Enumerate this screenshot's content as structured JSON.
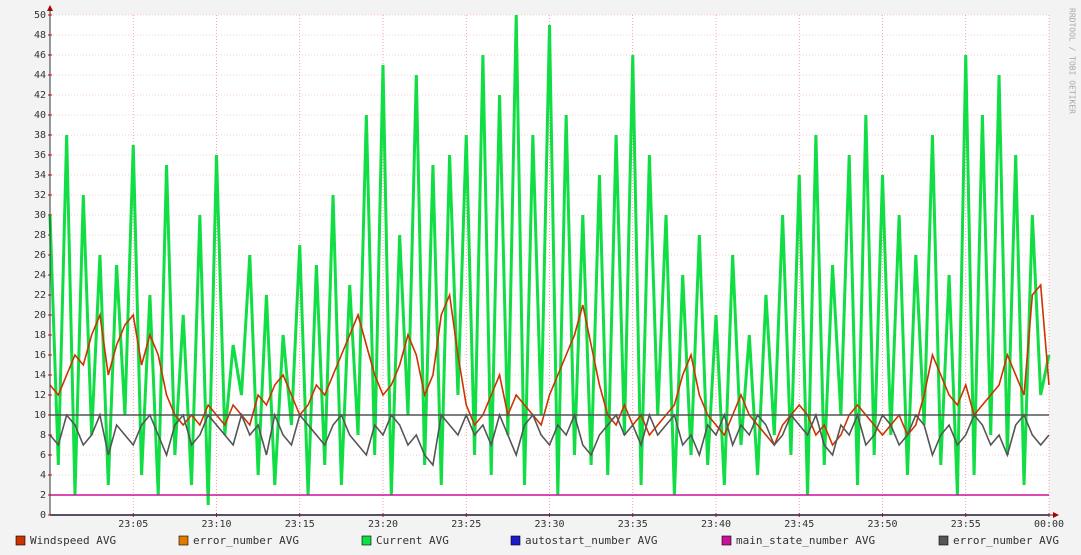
{
  "chart_data": {
    "type": "line",
    "watermark": "RRDTOOL / TOBI OETIKER",
    "xlim": [
      0,
      60
    ],
    "xticks": [
      {
        "value": 5,
        "label": "23:05"
      },
      {
        "value": 10,
        "label": "23:10"
      },
      {
        "value": 15,
        "label": "23:15"
      },
      {
        "value": 20,
        "label": "23:20"
      },
      {
        "value": 25,
        "label": "23:25"
      },
      {
        "value": 30,
        "label": "23:30"
      },
      {
        "value": 35,
        "label": "23:35"
      },
      {
        "value": 40,
        "label": "23:40"
      },
      {
        "value": 45,
        "label": "23:45"
      },
      {
        "value": 50,
        "label": "23:50"
      },
      {
        "value": 55,
        "label": "23:55"
      },
      {
        "value": 60,
        "label": "00:00"
      }
    ],
    "ylim": [
      0,
      50
    ],
    "yticks": [
      0,
      2,
      4,
      6,
      8,
      10,
      12,
      14,
      16,
      18,
      20,
      22,
      24,
      26,
      28,
      30,
      32,
      34,
      36,
      38,
      40,
      42,
      44,
      46,
      48,
      50
    ],
    "grid": true,
    "hrules": [
      {
        "value": 10,
        "color": "#555555"
      }
    ],
    "x": [
      0,
      0.5,
      1,
      1.5,
      2,
      2.5,
      3,
      3.5,
      4,
      4.5,
      5,
      5.5,
      6,
      6.5,
      7,
      7.5,
      8,
      8.5,
      9,
      9.5,
      10,
      10.5,
      11,
      11.5,
      12,
      12.5,
      13,
      13.5,
      14,
      14.5,
      15,
      15.5,
      16,
      16.5,
      17,
      17.5,
      18,
      18.5,
      19,
      19.5,
      20,
      20.5,
      21,
      21.5,
      22,
      22.5,
      23,
      23.5,
      24,
      24.5,
      25,
      25.5,
      26,
      26.5,
      27,
      27.5,
      28,
      28.5,
      29,
      29.5,
      30,
      30.5,
      31,
      31.5,
      32,
      32.5,
      33,
      33.5,
      34,
      34.5,
      35,
      35.5,
      36,
      36.5,
      37,
      37.5,
      38,
      38.5,
      39,
      39.5,
      40,
      40.5,
      41,
      41.5,
      42,
      42.5,
      43,
      43.5,
      44,
      44.5,
      45,
      45.5,
      46,
      46.5,
      47,
      47.5,
      48,
      48.5,
      49,
      49.5,
      50,
      50.5,
      51,
      51.5,
      52,
      52.5,
      53,
      53.5,
      54,
      54.5,
      55,
      55.5,
      56,
      56.5,
      57,
      57.5,
      58,
      58.5,
      59,
      59.5,
      60
    ],
    "series": [
      {
        "name": "Windspeed AVG",
        "color": "#cc3300",
        "values": [
          13,
          12,
          14,
          16,
          15,
          18,
          20,
          14,
          17,
          19,
          20,
          15,
          18,
          16,
          12,
          10,
          9,
          10,
          9,
          11,
          10,
          9,
          11,
          10,
          9,
          12,
          11,
          13,
          14,
          12,
          10,
          11,
          13,
          12,
          14,
          16,
          18,
          20,
          17,
          14,
          12,
          13,
          15,
          18,
          16,
          12,
          14,
          20,
          22,
          16,
          11,
          9,
          10,
          12,
          14,
          10,
          12,
          11,
          10,
          9,
          12,
          14,
          16,
          18,
          21,
          17,
          13,
          10,
          9,
          11,
          9,
          10,
          8,
          9,
          10,
          11,
          14,
          16,
          12,
          10,
          9,
          8,
          10,
          12,
          10,
          9,
          8,
          7,
          9,
          10,
          11,
          10,
          8,
          9,
          7,
          8,
          10,
          11,
          10,
          9,
          8,
          9,
          10,
          8,
          9,
          12,
          16,
          14,
          12,
          11,
          13,
          10,
          11,
          12,
          13,
          16,
          14,
          12,
          22,
          23,
          13
        ]
      },
      {
        "name": "error_number AVG",
        "color": "#e07b00",
        "values": [
          0,
          0,
          0,
          0,
          0,
          0,
          0,
          0,
          0,
          0,
          0,
          0,
          0,
          0,
          0,
          0,
          0,
          0,
          0,
          0,
          0,
          0,
          0,
          0,
          0,
          0,
          0,
          0,
          0,
          0,
          0,
          0,
          0,
          0,
          0,
          0,
          0,
          0,
          0,
          0,
          0,
          0,
          0,
          0,
          0,
          0,
          0,
          0,
          0,
          0,
          0,
          0,
          0,
          0,
          0,
          0,
          0,
          0,
          0,
          0,
          0,
          0,
          0,
          0,
          0,
          0,
          0,
          0,
          0,
          0,
          0,
          0,
          0,
          0,
          0,
          0,
          0,
          0,
          0,
          0,
          0,
          0,
          0,
          0,
          0,
          0,
          0,
          0,
          0,
          0,
          0,
          0,
          0,
          0,
          0,
          0,
          0,
          0,
          0,
          0,
          0,
          0,
          0,
          0,
          0,
          0,
          0,
          0,
          0,
          0,
          0,
          0,
          0,
          0,
          0,
          0,
          0,
          0,
          0,
          0,
          0
        ]
      },
      {
        "name": "Current AVG",
        "color": "#11dd44",
        "values": [
          30,
          5,
          38,
          2,
          32,
          8,
          26,
          3,
          25,
          10,
          37,
          4,
          22,
          2,
          35,
          6,
          20,
          3,
          30,
          1,
          36,
          8,
          17,
          12,
          26,
          4,
          22,
          3,
          18,
          9,
          27,
          2,
          25,
          5,
          32,
          3,
          23,
          8,
          40,
          6,
          45,
          2,
          28,
          10,
          44,
          5,
          35,
          3,
          36,
          12,
          38,
          6,
          46,
          4,
          42,
          8,
          50,
          3,
          38,
          10,
          49,
          2,
          40,
          6,
          30,
          5,
          34,
          4,
          38,
          8,
          46,
          3,
          36,
          10,
          30,
          2,
          24,
          6,
          28,
          5,
          20,
          3,
          26,
          7,
          18,
          4,
          22,
          8,
          30,
          6,
          34,
          2,
          38,
          5,
          25,
          10,
          36,
          3,
          40,
          6,
          34,
          8,
          30,
          4,
          26,
          9,
          38,
          5,
          24,
          2,
          46,
          4,
          40,
          8,
          44,
          6,
          36,
          3,
          30,
          12,
          16
        ]
      },
      {
        "name": "autostart_number AVG",
        "color": "#1a1acc",
        "values": [
          0,
          0,
          0,
          0,
          0,
          0,
          0,
          0,
          0,
          0,
          0,
          0,
          0,
          0,
          0,
          0,
          0,
          0,
          0,
          0,
          0,
          0,
          0,
          0,
          0,
          0,
          0,
          0,
          0,
          0,
          0,
          0,
          0,
          0,
          0,
          0,
          0,
          0,
          0,
          0,
          0,
          0,
          0,
          0,
          0,
          0,
          0,
          0,
          0,
          0,
          0,
          0,
          0,
          0,
          0,
          0,
          0,
          0,
          0,
          0,
          0,
          0,
          0,
          0,
          0,
          0,
          0,
          0,
          0,
          0,
          0,
          0,
          0,
          0,
          0,
          0,
          0,
          0,
          0,
          0,
          0,
          0,
          0,
          0,
          0,
          0,
          0,
          0,
          0,
          0,
          0,
          0,
          0,
          0,
          0,
          0,
          0,
          0,
          0,
          0,
          0,
          0,
          0,
          0,
          0,
          0,
          0,
          0,
          0,
          0,
          0,
          0,
          0,
          0,
          0,
          0,
          0,
          0,
          0,
          0,
          0
        ]
      },
      {
        "name": "main_state_number AVG",
        "color": "#cc1199",
        "values": [
          2,
          2,
          2,
          2,
          2,
          2,
          2,
          2,
          2,
          2,
          2,
          2,
          2,
          2,
          2,
          2,
          2,
          2,
          2,
          2,
          2,
          2,
          2,
          2,
          2,
          2,
          2,
          2,
          2,
          2,
          2,
          2,
          2,
          2,
          2,
          2,
          2,
          2,
          2,
          2,
          2,
          2,
          2,
          2,
          2,
          2,
          2,
          2,
          2,
          2,
          2,
          2,
          2,
          2,
          2,
          2,
          2,
          2,
          2,
          2,
          2,
          2,
          2,
          2,
          2,
          2,
          2,
          2,
          2,
          2,
          2,
          2,
          2,
          2,
          2,
          2,
          2,
          2,
          2,
          2,
          2,
          2,
          2,
          2,
          2,
          2,
          2,
          2,
          2,
          2,
          2,
          2,
          2,
          2,
          2,
          2,
          2,
          2,
          2,
          2,
          2,
          2,
          2,
          2,
          2,
          2,
          2,
          2,
          2,
          2,
          2,
          2,
          2,
          2,
          2,
          2,
          2,
          2,
          2,
          2,
          2
        ]
      },
      {
        "name": "error_number AVG",
        "color": "#555555",
        "values": [
          8,
          7,
          10,
          9,
          7,
          8,
          10,
          6,
          9,
          8,
          7,
          9,
          10,
          8,
          6,
          9,
          10,
          7,
          8,
          10,
          9,
          8,
          7,
          10,
          8,
          9,
          6,
          10,
          8,
          7,
          10,
          9,
          8,
          7,
          9,
          10,
          8,
          7,
          6,
          9,
          8,
          10,
          9,
          7,
          8,
          6,
          5,
          10,
          9,
          8,
          10,
          8,
          9,
          7,
          10,
          8,
          6,
          9,
          10,
          8,
          7,
          9,
          8,
          10,
          7,
          6,
          8,
          9,
          10,
          8,
          9,
          7,
          10,
          8,
          9,
          10,
          7,
          8,
          6,
          9,
          8,
          10,
          7,
          9,
          8,
          10,
          9,
          7,
          8,
          10,
          9,
          8,
          10,
          7,
          6,
          9,
          8,
          10,
          7,
          8,
          10,
          9,
          7,
          8,
          10,
          9,
          6,
          8,
          9,
          7,
          8,
          10,
          9,
          7,
          8,
          6,
          9,
          10,
          8,
          7,
          8
        ]
      }
    ]
  }
}
